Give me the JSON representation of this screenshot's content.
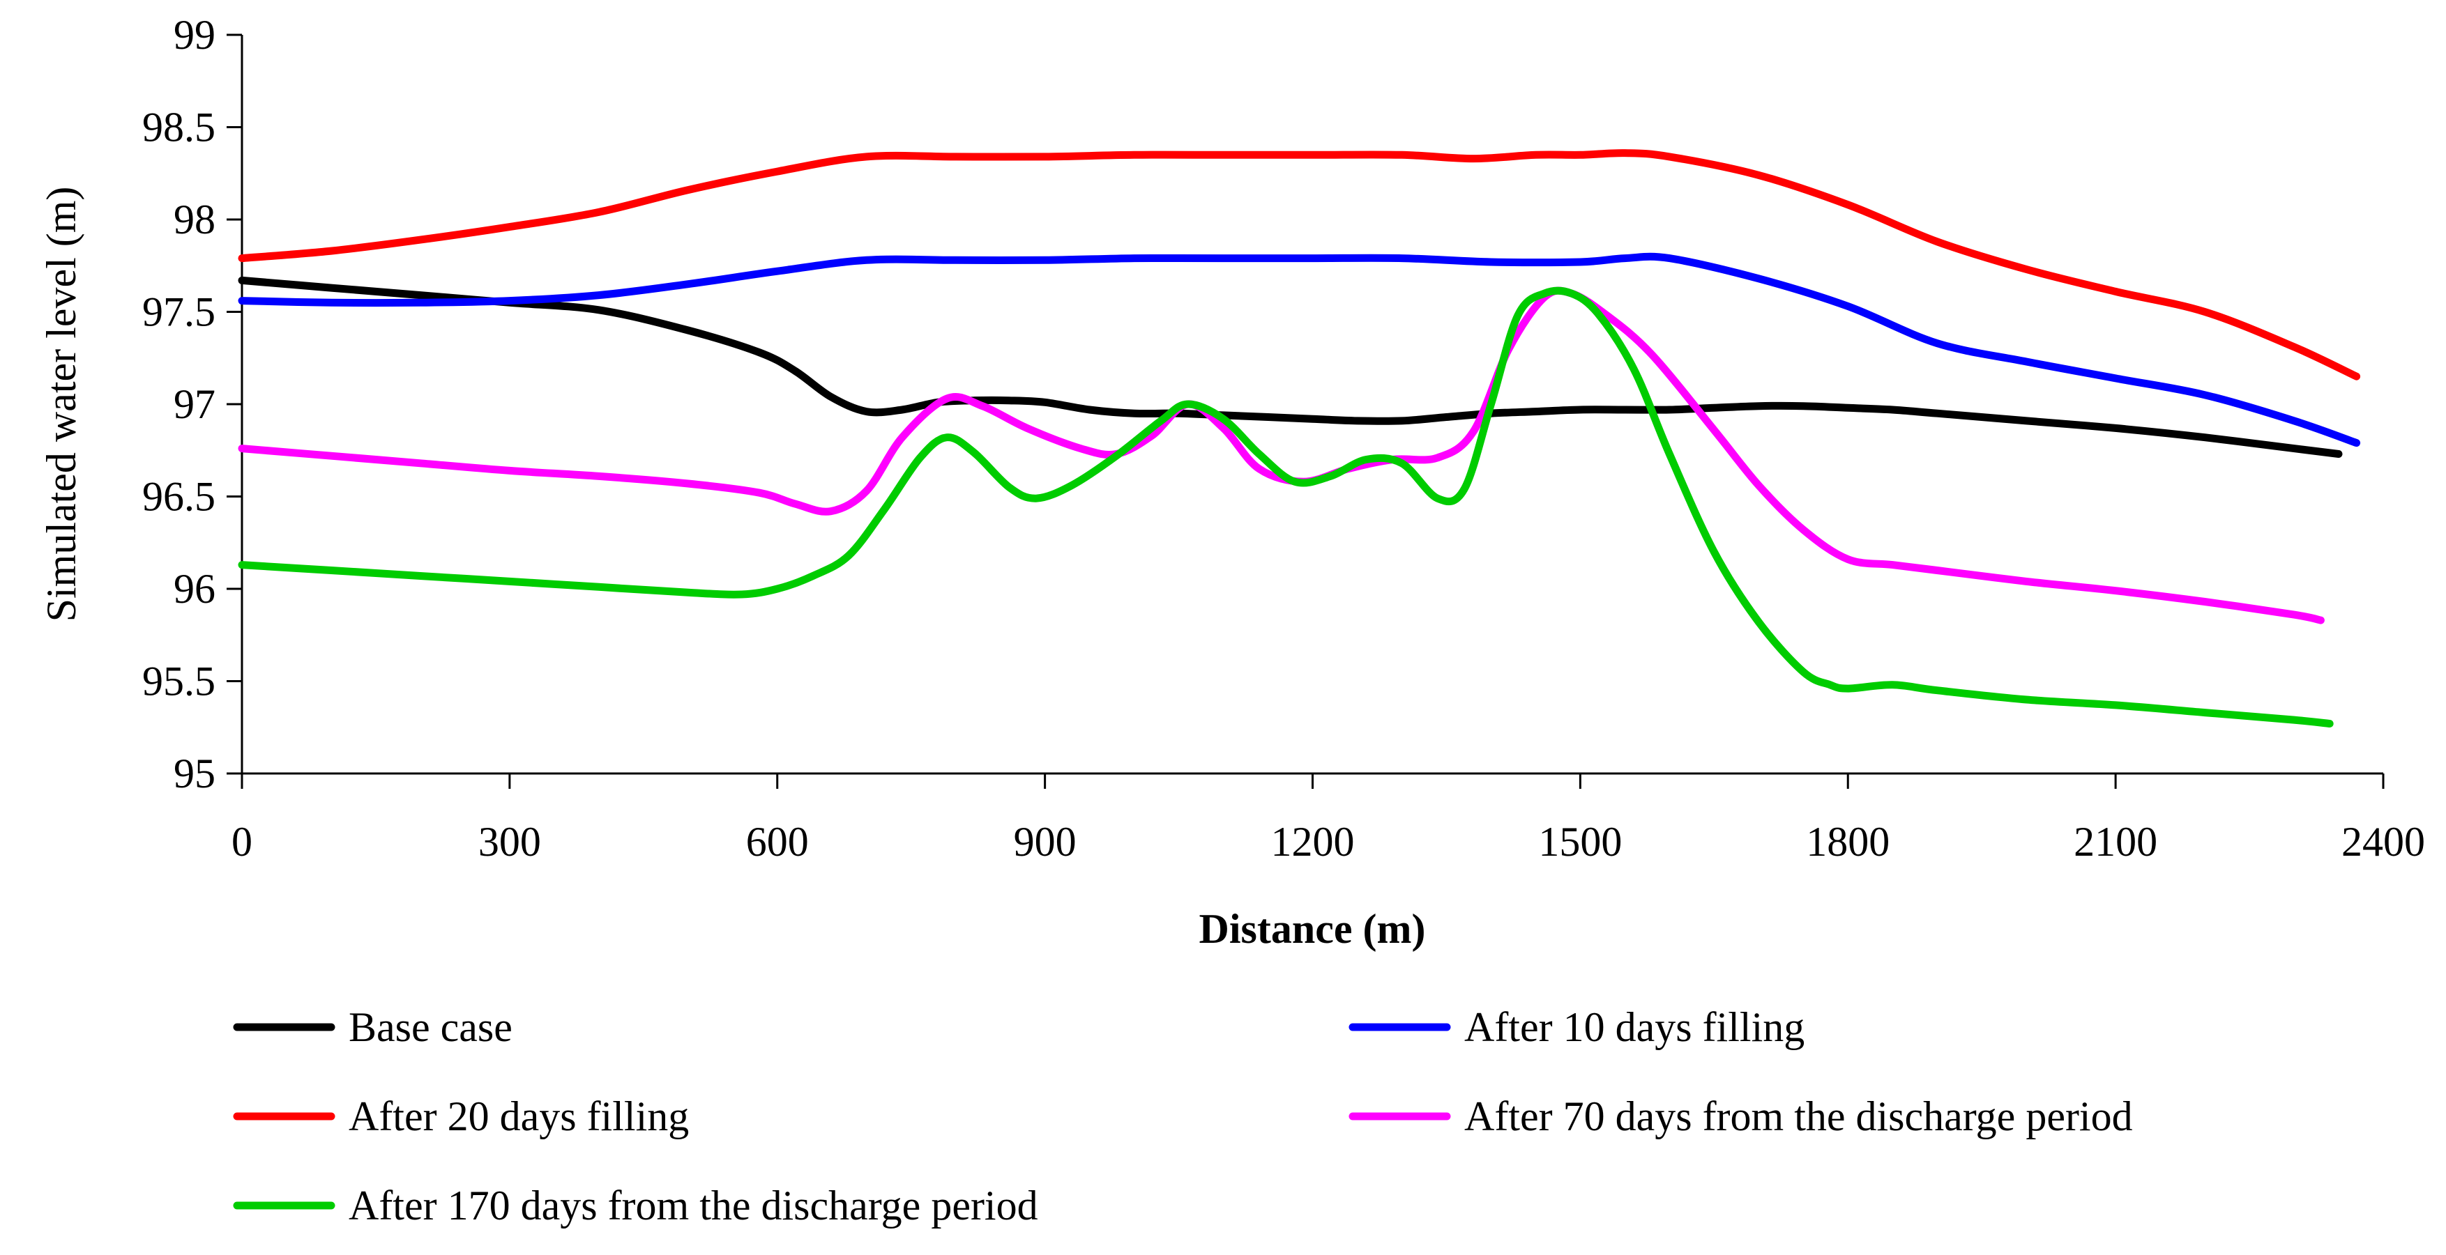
{
  "chart_data": {
    "type": "line",
    "title": "",
    "xlabel": "Distance (m)",
    "ylabel": "Simulated water level (m)",
    "xlim": [
      0,
      2400
    ],
    "ylim": [
      95,
      99
    ],
    "x_ticks": [
      0,
      300,
      600,
      900,
      1200,
      1500,
      1800,
      2100,
      2400
    ],
    "x_tick_labels": [
      "0",
      "300",
      "600",
      "900",
      "1200",
      "1500",
      "1800",
      "2100",
      "2400"
    ],
    "y_ticks": [
      95,
      95.5,
      96,
      96.5,
      97,
      97.5,
      98,
      98.5,
      99
    ],
    "y_tick_labels": [
      "95",
      "95.5",
      "96",
      "96.5",
      "97",
      "97.5",
      "98",
      "98.5",
      "99"
    ],
    "grid": false,
    "legend_position": "bottom",
    "series": [
      {
        "name": "Base case",
        "color": "#000000",
        "x": [
          0,
          100,
          200,
          300,
          400,
          500,
          580,
          620,
          660,
          700,
          740,
          780,
          820,
          860,
          900,
          950,
          1000,
          1050,
          1100,
          1150,
          1200,
          1250,
          1300,
          1350,
          1400,
          1450,
          1500,
          1550,
          1600,
          1650,
          1700,
          1750,
          1800,
          1850,
          1900,
          2000,
          2100,
          2200,
          2300,
          2350
        ],
        "y": [
          97.67,
          97.63,
          97.59,
          97.55,
          97.51,
          97.4,
          97.28,
          97.18,
          97.04,
          96.96,
          96.97,
          97.01,
          97.02,
          97.02,
          97.01,
          96.97,
          96.95,
          96.95,
          96.94,
          96.93,
          96.92,
          96.91,
          96.91,
          96.93,
          96.95,
          96.96,
          96.97,
          96.97,
          96.97,
          96.98,
          96.99,
          96.99,
          96.98,
          96.97,
          96.95,
          96.91,
          96.87,
          96.82,
          96.76,
          96.73
        ]
      },
      {
        "name": "After 10 days filling",
        "color": "#0000ff",
        "x": [
          0,
          100,
          200,
          300,
          400,
          500,
          600,
          700,
          800,
          900,
          1000,
          1100,
          1200,
          1300,
          1400,
          1500,
          1550,
          1600,
          1700,
          1800,
          1900,
          2000,
          2100,
          2200,
          2300,
          2370
        ],
        "y": [
          97.56,
          97.55,
          97.55,
          97.56,
          97.59,
          97.65,
          97.72,
          97.78,
          97.78,
          97.78,
          97.79,
          97.79,
          97.79,
          97.79,
          97.77,
          97.77,
          97.79,
          97.79,
          97.68,
          97.53,
          97.33,
          97.23,
          97.14,
          97.05,
          96.91,
          96.79
        ]
      },
      {
        "name": "After 20 days filling",
        "color": "#ff0000",
        "x": [
          0,
          100,
          200,
          300,
          400,
          500,
          600,
          700,
          800,
          900,
          1000,
          1100,
          1200,
          1300,
          1380,
          1450,
          1500,
          1550,
          1600,
          1700,
          1800,
          1900,
          2000,
          2100,
          2200,
          2300,
          2370
        ],
        "y": [
          97.79,
          97.83,
          97.89,
          97.96,
          98.04,
          98.16,
          98.26,
          98.34,
          98.34,
          98.34,
          98.35,
          98.35,
          98.35,
          98.35,
          98.33,
          98.35,
          98.35,
          98.36,
          98.34,
          98.24,
          98.08,
          97.88,
          97.73,
          97.61,
          97.5,
          97.31,
          97.15
        ]
      },
      {
        "name": "After 70 days from the discharge period",
        "color": "#ff00ff",
        "x": [
          0,
          100,
          200,
          300,
          400,
          500,
          580,
          620,
          660,
          700,
          740,
          790,
          830,
          880,
          940,
          980,
          1020,
          1060,
          1100,
          1140,
          1190,
          1240,
          1290,
          1340,
          1380,
          1420,
          1460,
          1490,
          1530,
          1580,
          1650,
          1700,
          1750,
          1800,
          1850,
          1900,
          2000,
          2100,
          2200,
          2300,
          2330
        ],
        "y": [
          96.76,
          96.72,
          96.68,
          96.64,
          96.61,
          96.57,
          96.52,
          96.46,
          96.42,
          96.53,
          96.82,
          97.03,
          96.99,
          96.87,
          96.76,
          96.73,
          96.83,
          97.0,
          96.87,
          96.65,
          96.58,
          96.65,
          96.7,
          96.71,
          96.85,
          97.3,
          97.58,
          97.6,
          97.48,
          97.27,
          96.86,
          96.56,
          96.32,
          96.16,
          96.13,
          96.1,
          96.04,
          95.99,
          95.93,
          95.86,
          95.83
        ]
      },
      {
        "name": "After 170 days from the discharge period",
        "color": "#00cc00",
        "x": [
          0,
          100,
          200,
          300,
          400,
          500,
          560,
          600,
          640,
          680,
          720,
          760,
          790,
          820,
          860,
          890,
          930,
          980,
          1030,
          1060,
          1100,
          1140,
          1180,
          1220,
          1260,
          1300,
          1340,
          1370,
          1400,
          1430,
          1460,
          1490,
          1520,
          1560,
          1600,
          1650,
          1700,
          1750,
          1780,
          1800,
          1850,
          1900,
          2000,
          2100,
          2200,
          2300,
          2340
        ],
        "y": [
          96.13,
          96.1,
          96.07,
          96.04,
          96.01,
          95.98,
          95.97,
          96.0,
          96.07,
          96.18,
          96.43,
          96.71,
          96.82,
          96.74,
          96.55,
          96.49,
          96.56,
          96.72,
          96.91,
          97.0,
          96.92,
          96.73,
          96.58,
          96.61,
          96.7,
          96.68,
          96.49,
          96.54,
          97.0,
          97.48,
          97.6,
          97.6,
          97.49,
          97.19,
          96.73,
          96.2,
          95.82,
          95.55,
          95.48,
          95.46,
          95.48,
          95.45,
          95.4,
          95.37,
          95.33,
          95.29,
          95.27
        ]
      }
    ]
  }
}
